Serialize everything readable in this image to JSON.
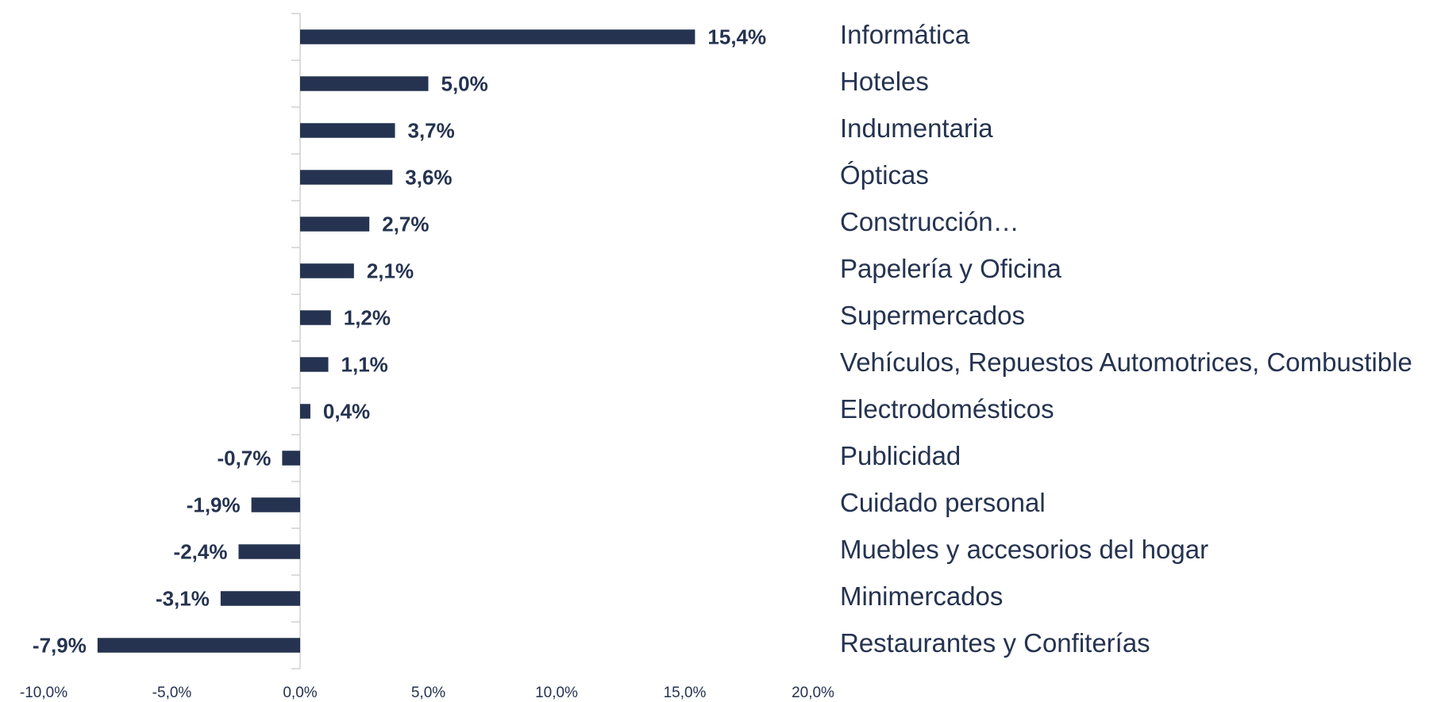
{
  "chart_data": {
    "type": "bar",
    "orientation": "horizontal",
    "categories": [
      "Informática",
      "Hoteles",
      "Indumentaria",
      "Ópticas",
      "Construcción…",
      "Papelería y Oficina",
      "Supermercados",
      "Vehículos, Repuestos Automotrices, Combustible",
      "Electrodomésticos",
      "Publicidad",
      "Cuidado personal",
      "Muebles y accesorios del hogar",
      "Minimercados",
      "Restaurantes y Confiterías"
    ],
    "values": [
      15.4,
      5.0,
      3.7,
      3.6,
      2.7,
      2.1,
      1.2,
      1.1,
      0.4,
      -0.7,
      -1.9,
      -2.4,
      -3.1,
      -7.9
    ],
    "value_labels": [
      "15,4%",
      "5,0%",
      "3,7%",
      "3,6%",
      "2,7%",
      "2,1%",
      "1,2%",
      "1,1%",
      "0,4%",
      "-0,7%",
      "-1,9%",
      "-2,4%",
      "-3,1%",
      "-7,9%"
    ],
    "color": "#253350",
    "xlim": [
      -10,
      20
    ],
    "xticks": [
      {
        "value": -10,
        "label": "-10,0%"
      },
      {
        "value": -5,
        "label": "-5,0%"
      },
      {
        "value": 0,
        "label": "0,0%"
      },
      {
        "value": 5,
        "label": "5,0%"
      },
      {
        "value": 10,
        "label": "10,0%"
      },
      {
        "value": 15,
        "label": "15,0%"
      },
      {
        "value": 20,
        "label": "20,0%"
      }
    ],
    "grid": false
  }
}
